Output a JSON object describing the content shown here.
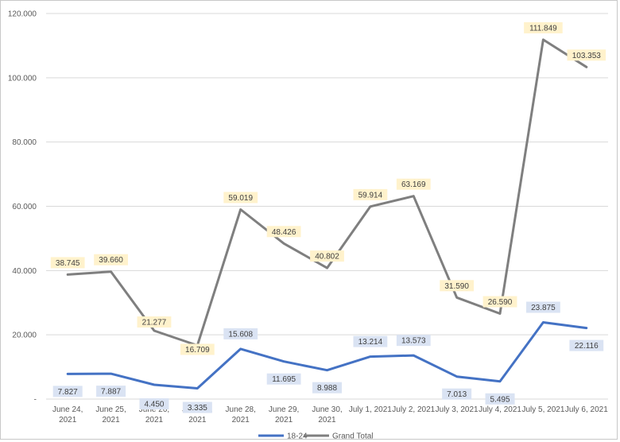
{
  "chart_data": {
    "type": "line",
    "categories": [
      [
        "June 24,",
        "2021"
      ],
      [
        "June 25,",
        "2021"
      ],
      [
        "June 26,",
        "2021"
      ],
      [
        "June 27,",
        "2021"
      ],
      [
        "June 28,",
        "2021"
      ],
      [
        "June 29,",
        "2021"
      ],
      [
        "June 30,",
        "2021"
      ],
      [
        "July 1, 2021"
      ],
      [
        "July 2, 2021"
      ],
      [
        "July 3, 2021"
      ],
      [
        "July 4, 2021"
      ],
      [
        "July 5, 2021"
      ],
      [
        "July 6, 2021"
      ]
    ],
    "y_ticks": [
      {
        "value": 0,
        "label": "-"
      },
      {
        "value": 20000,
        "label": "20.000"
      },
      {
        "value": 40000,
        "label": "40.000"
      },
      {
        "value": 60000,
        "label": "60.000"
      },
      {
        "value": 80000,
        "label": "80.000"
      },
      {
        "value": 100000,
        "label": "100.000"
      },
      {
        "value": 120000,
        "label": "120.000"
      }
    ],
    "ylim": [
      0,
      120000
    ],
    "grid": true,
    "legend_position": "bottom",
    "series": [
      {
        "name": "18-24",
        "color": "#4472c4",
        "label_bg": "#dae3f3",
        "values": [
          7827,
          7887,
          4450,
          3335,
          15608,
          11695,
          8988,
          13214,
          13573,
          7013,
          5495,
          23875,
          22116
        ],
        "labels": [
          "7.827",
          "7.887",
          "4.450",
          "3.335",
          "15.608",
          "11.695",
          "8.988",
          "13.214",
          "13.573",
          "7.013",
          "5.495",
          "23.875",
          "22.116"
        ]
      },
      {
        "name": "Grand Total",
        "color": "#7f7f7f",
        "label_bg": "#fff2cc",
        "values": [
          38745,
          39660,
          21277,
          16709,
          59019,
          48426,
          40802,
          59914,
          63169,
          31590,
          26590,
          111849,
          103353
        ],
        "labels": [
          "38.745",
          "39.660",
          "21.277",
          "16.709",
          "59.019",
          "48.426",
          "40.802",
          "59.914",
          "63.169",
          "31.590",
          "26.590",
          "111.849",
          "103.353"
        ]
      }
    ]
  }
}
